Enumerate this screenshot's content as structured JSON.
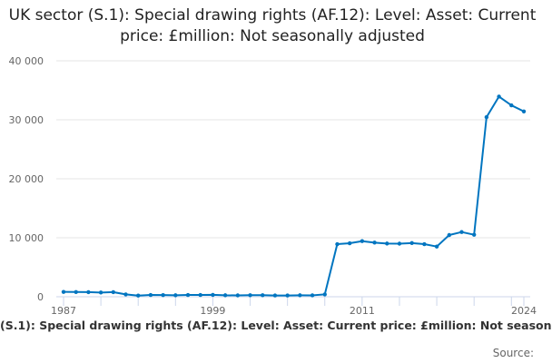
{
  "chart_data": {
    "type": "line",
    "title": "UK sector (S.1): Special drawing rights (AF.12): Level: Asset: Current price: £million: Not seasonally adjusted",
    "xlabel": "",
    "ylabel": "",
    "x": [
      1987,
      1988,
      1989,
      1990,
      1991,
      1992,
      1993,
      1994,
      1995,
      1996,
      1997,
      1998,
      1999,
      2000,
      2001,
      2002,
      2003,
      2004,
      2005,
      2006,
      2007,
      2008,
      2009,
      2010,
      2011,
      2012,
      2013,
      2014,
      2015,
      2016,
      2017,
      2018,
      2019,
      2020,
      2021,
      2022,
      2023,
      2024
    ],
    "series": [
      {
        "values": [
          820,
          800,
          780,
          720,
          780,
          400,
          200,
          300,
          280,
          250,
          300,
          300,
          320,
          250,
          230,
          260,
          260,
          220,
          220,
          250,
          240,
          400,
          8920,
          9070,
          9430,
          9180,
          9020,
          9000,
          9100,
          8920,
          8510,
          10460,
          10970,
          10510,
          30450,
          33940,
          32450,
          31420
        ],
        "color": "#0075c0"
      }
    ],
    "ylim": [
      0,
      40000
    ],
    "yticks": [
      "0",
      "10 000",
      "20 000",
      "30 000",
      "40 000"
    ],
    "xtick_labels": [
      "1987",
      "1999",
      "2011",
      "2024"
    ],
    "grid": true,
    "legend": "none"
  },
  "footer": {
    "title_visible": "(S.1): Special drawing rights (AF.12): Level: Asset: Current price: £million: Not season",
    "source": "Source:"
  }
}
